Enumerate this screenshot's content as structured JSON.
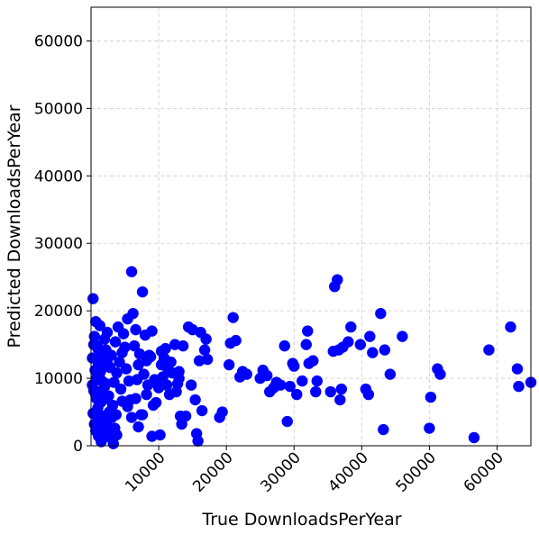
{
  "chart_data": {
    "type": "scatter",
    "title": "",
    "xlabel": "True DownloadsPerYear",
    "ylabel": "Predicted DownloadsPerYear",
    "xlim": [
      0,
      65000
    ],
    "ylim": [
      0,
      65000
    ],
    "xticks": [
      10000,
      20000,
      30000,
      40000,
      50000,
      60000
    ],
    "yticks": [
      0,
      10000,
      20000,
      30000,
      40000,
      50000,
      60000
    ],
    "grid": true,
    "marker_color": "#0000ff",
    "series": [
      {
        "points": [
          [
            300,
            21800
          ],
          [
            500,
            16200
          ],
          [
            700,
            18400
          ],
          [
            900,
            14800
          ],
          [
            1100,
            12000
          ],
          [
            1300,
            17800
          ],
          [
            200,
            9000
          ],
          [
            400,
            8200
          ],
          [
            600,
            11200
          ],
          [
            800,
            7000
          ],
          [
            1000,
            5600
          ],
          [
            1200,
            10400
          ],
          [
            1400,
            6400
          ],
          [
            1600,
            9600
          ],
          [
            1800,
            12800
          ],
          [
            2000,
            8800
          ],
          [
            2200,
            14200
          ],
          [
            2400,
            16800
          ],
          [
            2600,
            7400
          ],
          [
            2800,
            11600
          ],
          [
            3000,
            13400
          ],
          [
            3200,
            6000
          ],
          [
            3400,
            9400
          ],
          [
            3600,
            15400
          ],
          [
            3800,
            10800
          ],
          [
            4000,
            17600
          ],
          [
            4200,
            12400
          ],
          [
            4400,
            8400
          ],
          [
            4600,
            13800
          ],
          [
            4800,
            16600
          ],
          [
            300,
            4800
          ],
          [
            500,
            3200
          ],
          [
            700,
            2200
          ],
          [
            900,
            5200
          ],
          [
            1100,
            1400
          ],
          [
            1300,
            3800
          ],
          [
            1500,
            600
          ],
          [
            1700,
            2800
          ],
          [
            1900,
            4400
          ],
          [
            2100,
            1800
          ],
          [
            2300,
            3600
          ],
          [
            2500,
            2400
          ],
          [
            2700,
            5000
          ],
          [
            2900,
            1200
          ],
          [
            3100,
            4200
          ],
          [
            3300,
            300
          ],
          [
            3500,
            2600
          ],
          [
            3700,
            4600
          ],
          [
            200,
            13000
          ],
          [
            400,
            15000
          ],
          [
            600,
            7800
          ],
          [
            800,
            10000
          ],
          [
            1000,
            14400
          ],
          [
            1200,
            8000
          ],
          [
            1400,
            11000
          ],
          [
            1600,
            13600
          ],
          [
            1800,
            6800
          ],
          [
            2000,
            15800
          ],
          [
            2200,
            9200
          ],
          [
            2400,
            12200
          ],
          [
            5000,
            14600
          ],
          [
            5200,
            11400
          ],
          [
            5400,
            18800
          ],
          [
            5600,
            9600
          ],
          [
            5800,
            6800
          ],
          [
            6000,
            25800
          ],
          [
            6200,
            19600
          ],
          [
            6400,
            14800
          ],
          [
            6600,
            17200
          ],
          [
            6800,
            9800
          ],
          [
            7000,
            12000
          ],
          [
            7200,
            13600
          ],
          [
            7400,
            4600
          ],
          [
            7600,
            22800
          ],
          [
            7800,
            10600
          ],
          [
            8000,
            16400
          ],
          [
            8200,
            12600
          ],
          [
            8400,
            9000
          ],
          [
            8800,
            13200
          ],
          [
            9000,
            17000
          ],
          [
            9400,
            9800
          ],
          [
            9600,
            6400
          ],
          [
            10000,
            8600
          ],
          [
            10200,
            1600
          ],
          [
            10400,
            12000
          ],
          [
            10600,
            10200
          ],
          [
            10800,
            13000
          ],
          [
            11000,
            14400
          ],
          [
            11200,
            9000
          ],
          [
            11400,
            11000
          ],
          [
            11600,
            7600
          ],
          [
            12000,
            10800
          ],
          [
            12400,
            15000
          ],
          [
            12800,
            9200
          ],
          [
            13000,
            11000
          ],
          [
            13200,
            4400
          ],
          [
            13400,
            3200
          ],
          [
            13600,
            14800
          ],
          [
            14000,
            4400
          ],
          [
            14400,
            17600
          ],
          [
            14800,
            9000
          ],
          [
            15000,
            17200
          ],
          [
            15400,
            6800
          ],
          [
            15600,
            1800
          ],
          [
            15800,
            700
          ],
          [
            16000,
            12600
          ],
          [
            16200,
            16800
          ],
          [
            16400,
            5200
          ],
          [
            16800,
            14200
          ],
          [
            17000,
            15800
          ],
          [
            17200,
            12800
          ],
          [
            19000,
            4200
          ],
          [
            19400,
            5000
          ],
          [
            20400,
            12000
          ],
          [
            20600,
            15200
          ],
          [
            21000,
            19000
          ],
          [
            21400,
            15600
          ],
          [
            22000,
            10200
          ],
          [
            22400,
            11000
          ],
          [
            23000,
            10600
          ],
          [
            25000,
            10000
          ],
          [
            25400,
            11200
          ],
          [
            26000,
            10400
          ],
          [
            26400,
            8000
          ],
          [
            27000,
            8600
          ],
          [
            27400,
            9400
          ],
          [
            28000,
            9000
          ],
          [
            28600,
            14800
          ],
          [
            29000,
            3600
          ],
          [
            29400,
            8800
          ],
          [
            29800,
            12200
          ],
          [
            30000,
            11800
          ],
          [
            30400,
            7600
          ],
          [
            31200,
            9600
          ],
          [
            31800,
            15000
          ],
          [
            32000,
            17000
          ],
          [
            32200,
            12200
          ],
          [
            32800,
            12600
          ],
          [
            33200,
            8000
          ],
          [
            33400,
            9600
          ],
          [
            35400,
            8000
          ],
          [
            35800,
            14000
          ],
          [
            36000,
            23600
          ],
          [
            36400,
            24600
          ],
          [
            36600,
            14200
          ],
          [
            36800,
            6800
          ],
          [
            37000,
            8400
          ],
          [
            37200,
            14600
          ],
          [
            38000,
            15400
          ],
          [
            38400,
            17600
          ],
          [
            39800,
            15000
          ],
          [
            40600,
            8400
          ],
          [
            41000,
            7600
          ],
          [
            41200,
            16200
          ],
          [
            41600,
            13800
          ],
          [
            42800,
            19600
          ],
          [
            43200,
            2400
          ],
          [
            43400,
            14200
          ],
          [
            44200,
            10600
          ],
          [
            46000,
            16200
          ],
          [
            50000,
            2600
          ],
          [
            50200,
            7200
          ],
          [
            51200,
            11400
          ],
          [
            51600,
            10600
          ],
          [
            56600,
            1200
          ],
          [
            58800,
            14200
          ],
          [
            62000,
            17600
          ],
          [
            63000,
            11400
          ],
          [
            63200,
            8800
          ],
          [
            65000,
            9400
          ],
          [
            9000,
            1400
          ],
          [
            3800,
            1600
          ],
          [
            4600,
            6600
          ],
          [
            5400,
            5800
          ],
          [
            6000,
            4200
          ],
          [
            6600,
            7000
          ],
          [
            7000,
            2800
          ],
          [
            7600,
            4600
          ],
          [
            8200,
            7600
          ],
          [
            8600,
            13400
          ],
          [
            9200,
            6000
          ],
          [
            9800,
            9200
          ],
          [
            10400,
            14000
          ],
          [
            11800,
            12400
          ],
          [
            12600,
            8000
          ],
          [
            13000,
            10000
          ]
        ]
      }
    ]
  }
}
